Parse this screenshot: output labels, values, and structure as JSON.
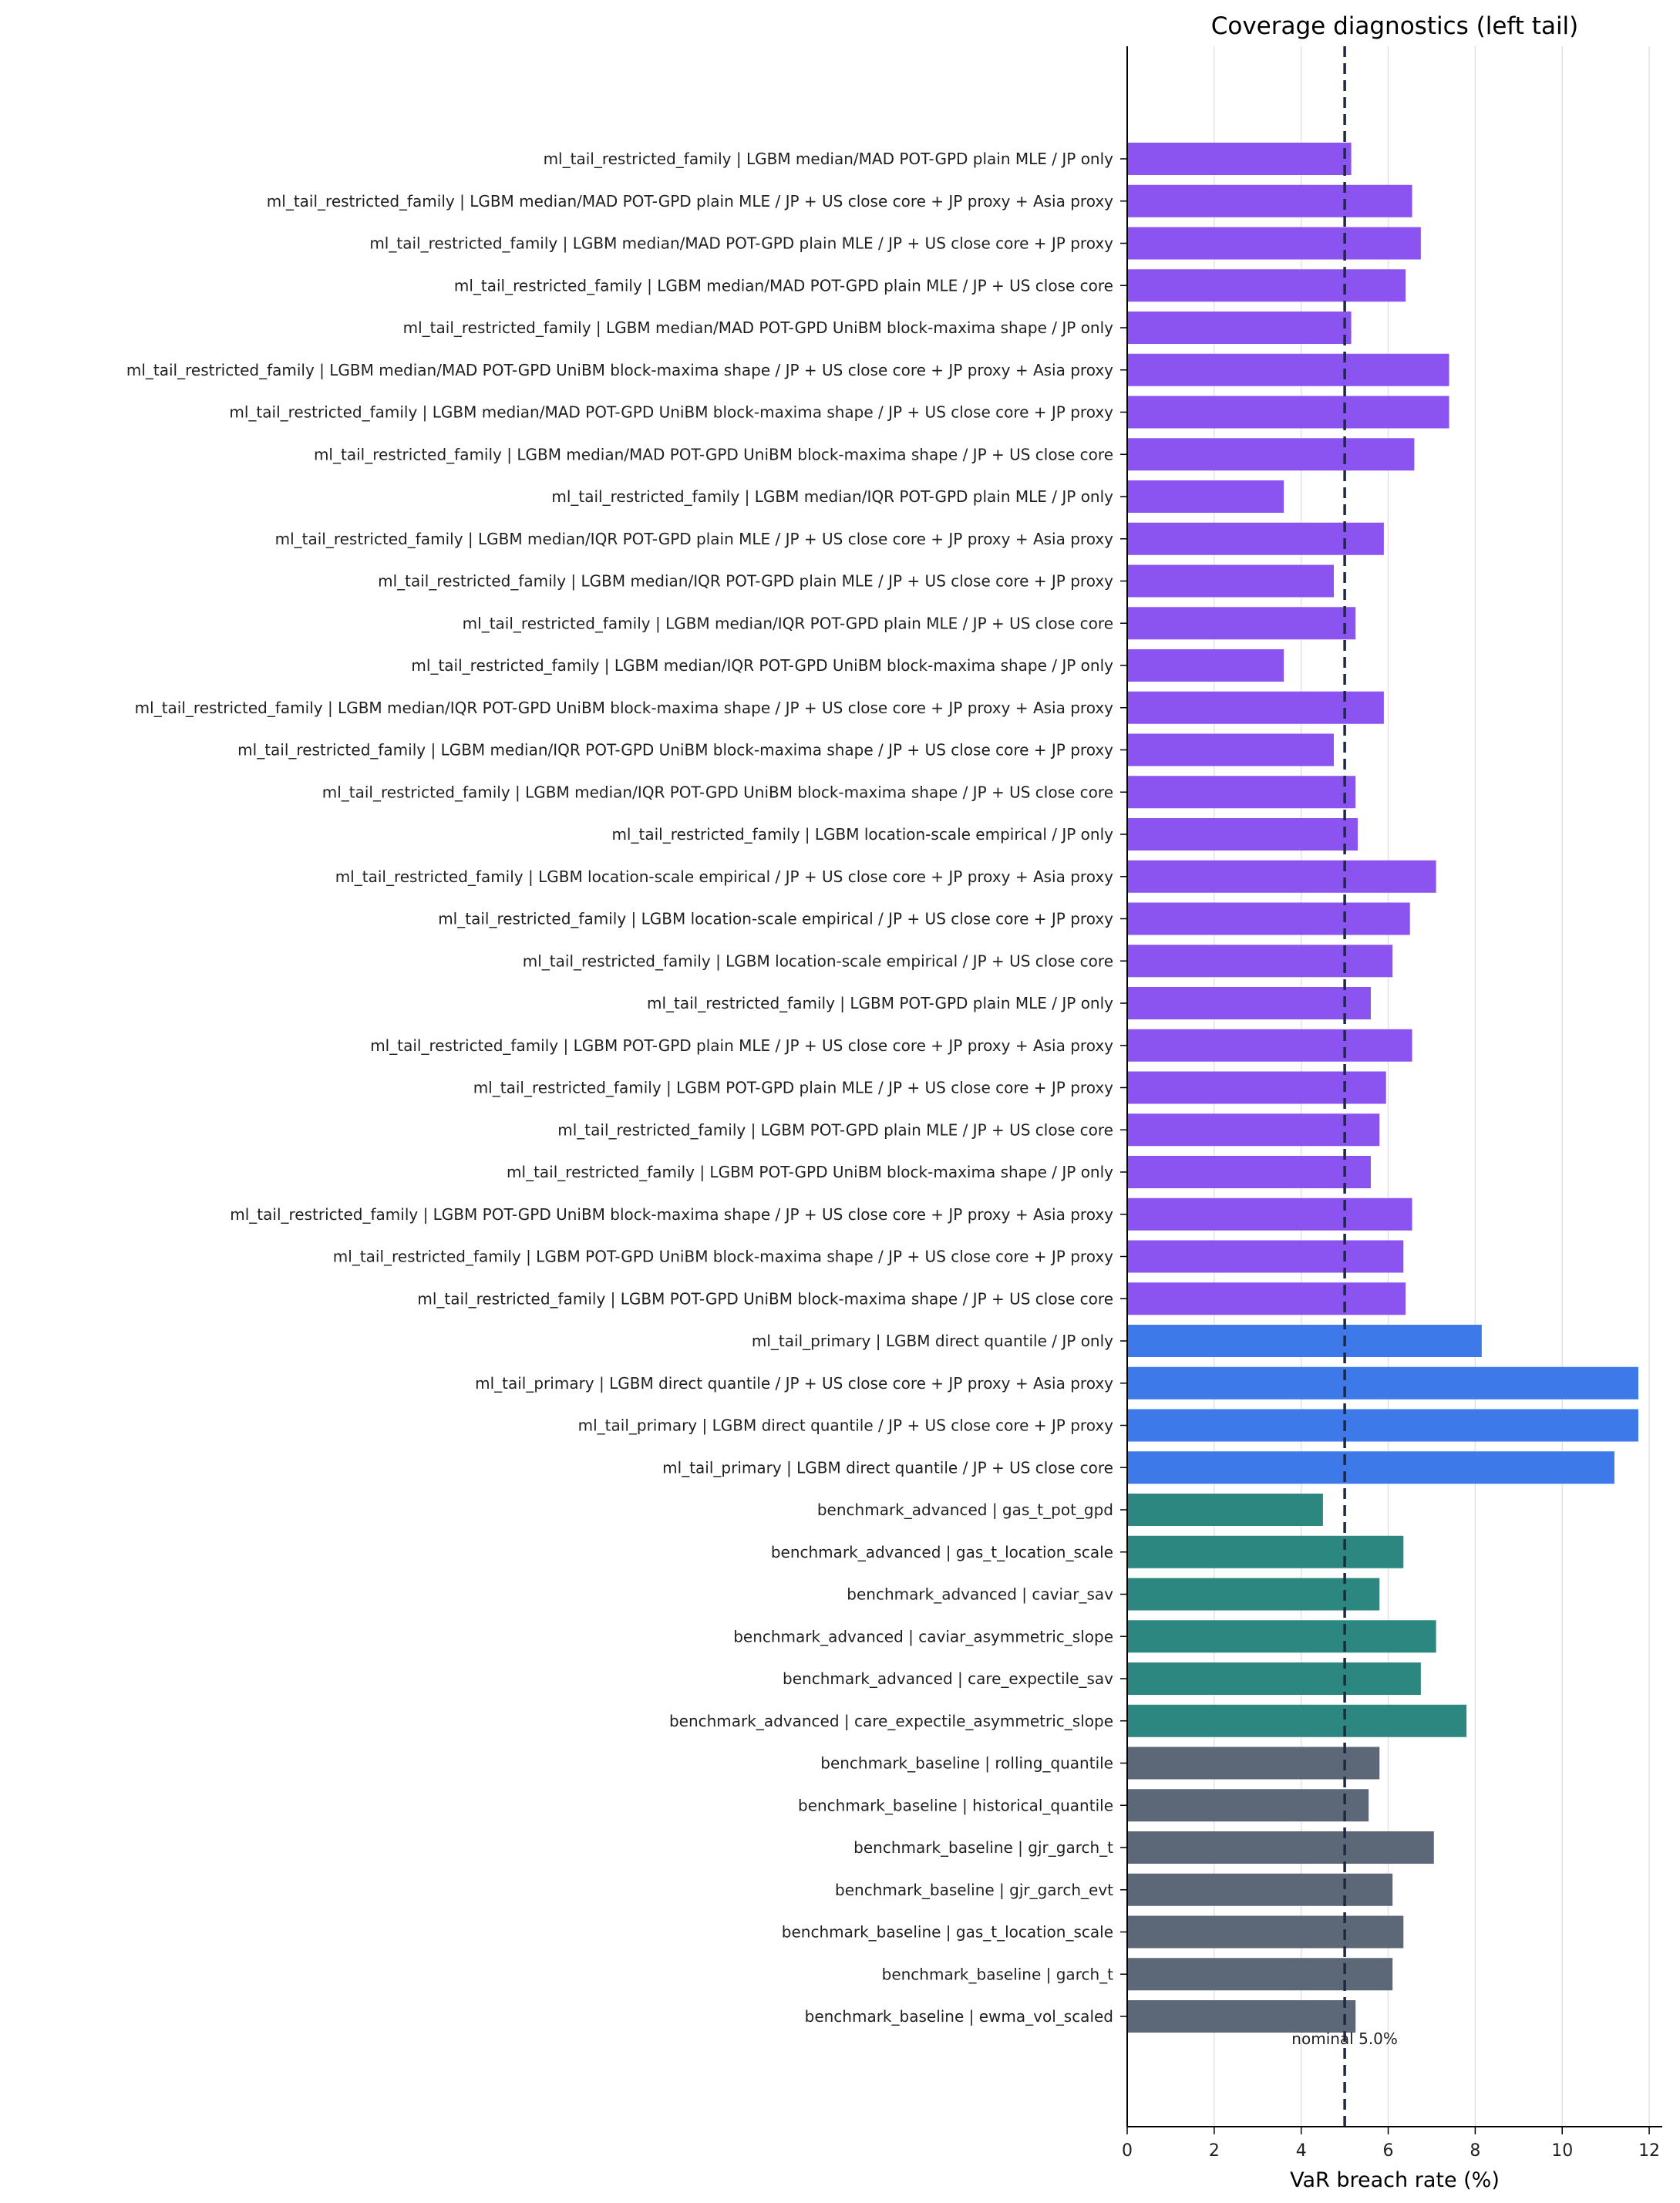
{
  "chart_data": {
    "type": "bar",
    "orientation": "horizontal",
    "title": "Coverage diagnostics (left tail)",
    "xlabel": "VaR breach rate (%)",
    "ylabel": "",
    "xlim": [
      0,
      12.3
    ],
    "xticks": [
      0,
      2,
      4,
      6,
      8,
      10,
      12
    ],
    "grid": "vertical",
    "reference_line": {
      "value": 5.0,
      "label": "nominal 5.0%",
      "style": "dashed",
      "color": "#1e2a44"
    },
    "group_colors": {
      "ml_tail_restricted_family": "#8b54f0",
      "ml_tail_primary": "#3d79e8",
      "benchmark_advanced": "#2b877f",
      "benchmark_baseline": "#5c6878"
    },
    "bars": [
      {
        "label": "ml_tail_restricted_family | LGBM median/MAD POT-GPD plain MLE / JP only",
        "group": "ml_tail_restricted_family",
        "value": 5.15
      },
      {
        "label": "ml_tail_restricted_family | LGBM median/MAD POT-GPD plain MLE / JP + US close core + JP proxy + Asia proxy",
        "group": "ml_tail_restricted_family",
        "value": 6.55
      },
      {
        "label": "ml_tail_restricted_family | LGBM median/MAD POT-GPD plain MLE / JP + US close core + JP proxy",
        "group": "ml_tail_restricted_family",
        "value": 6.75
      },
      {
        "label": "ml_tail_restricted_family | LGBM median/MAD POT-GPD plain MLE / JP + US close core",
        "group": "ml_tail_restricted_family",
        "value": 6.4
      },
      {
        "label": "ml_tail_restricted_family | LGBM median/MAD POT-GPD UniBM block-maxima shape / JP only",
        "group": "ml_tail_restricted_family",
        "value": 5.15
      },
      {
        "label": "ml_tail_restricted_family | LGBM median/MAD POT-GPD UniBM block-maxima shape / JP + US close core + JP proxy + Asia proxy",
        "group": "ml_tail_restricted_family",
        "value": 7.4
      },
      {
        "label": "ml_tail_restricted_family | LGBM median/MAD POT-GPD UniBM block-maxima shape / JP + US close core + JP proxy",
        "group": "ml_tail_restricted_family",
        "value": 7.4
      },
      {
        "label": "ml_tail_restricted_family | LGBM median/MAD POT-GPD UniBM block-maxima shape / JP + US close core",
        "group": "ml_tail_restricted_family",
        "value": 6.6
      },
      {
        "label": "ml_tail_restricted_family | LGBM median/IQR POT-GPD plain MLE / JP only",
        "group": "ml_tail_restricted_family",
        "value": 3.6
      },
      {
        "label": "ml_tail_restricted_family | LGBM median/IQR POT-GPD plain MLE / JP + US close core + JP proxy + Asia proxy",
        "group": "ml_tail_restricted_family",
        "value": 5.9
      },
      {
        "label": "ml_tail_restricted_family | LGBM median/IQR POT-GPD plain MLE / JP + US close core + JP proxy",
        "group": "ml_tail_restricted_family",
        "value": 4.75
      },
      {
        "label": "ml_tail_restricted_family | LGBM median/IQR POT-GPD plain MLE / JP + US close core",
        "group": "ml_tail_restricted_family",
        "value": 5.25
      },
      {
        "label": "ml_tail_restricted_family | LGBM median/IQR POT-GPD UniBM block-maxima shape / JP only",
        "group": "ml_tail_restricted_family",
        "value": 3.6
      },
      {
        "label": "ml_tail_restricted_family | LGBM median/IQR POT-GPD UniBM block-maxima shape / JP + US close core + JP proxy + Asia proxy",
        "group": "ml_tail_restricted_family",
        "value": 5.9
      },
      {
        "label": "ml_tail_restricted_family | LGBM median/IQR POT-GPD UniBM block-maxima shape / JP + US close core + JP proxy",
        "group": "ml_tail_restricted_family",
        "value": 4.75
      },
      {
        "label": "ml_tail_restricted_family | LGBM median/IQR POT-GPD UniBM block-maxima shape / JP + US close core",
        "group": "ml_tail_restricted_family",
        "value": 5.25
      },
      {
        "label": "ml_tail_restricted_family | LGBM location-scale empirical / JP only",
        "group": "ml_tail_restricted_family",
        "value": 5.3
      },
      {
        "label": "ml_tail_restricted_family | LGBM location-scale empirical / JP + US close core + JP proxy + Asia proxy",
        "group": "ml_tail_restricted_family",
        "value": 7.1
      },
      {
        "label": "ml_tail_restricted_family | LGBM location-scale empirical / JP + US close core + JP proxy",
        "group": "ml_tail_restricted_family",
        "value": 6.5
      },
      {
        "label": "ml_tail_restricted_family | LGBM location-scale empirical / JP + US close core",
        "group": "ml_tail_restricted_family",
        "value": 6.1
      },
      {
        "label": "ml_tail_restricted_family | LGBM POT-GPD plain MLE / JP only",
        "group": "ml_tail_restricted_family",
        "value": 5.6
      },
      {
        "label": "ml_tail_restricted_family | LGBM POT-GPD plain MLE / JP + US close core + JP proxy + Asia proxy",
        "group": "ml_tail_restricted_family",
        "value": 6.55
      },
      {
        "label": "ml_tail_restricted_family | LGBM POT-GPD plain MLE / JP + US close core + JP proxy",
        "group": "ml_tail_restricted_family",
        "value": 5.95
      },
      {
        "label": "ml_tail_restricted_family | LGBM POT-GPD plain MLE / JP + US close core",
        "group": "ml_tail_restricted_family",
        "value": 5.8
      },
      {
        "label": "ml_tail_restricted_family | LGBM POT-GPD UniBM block-maxima shape / JP only",
        "group": "ml_tail_restricted_family",
        "value": 5.6
      },
      {
        "label": "ml_tail_restricted_family | LGBM POT-GPD UniBM block-maxima shape / JP + US close core + JP proxy + Asia proxy",
        "group": "ml_tail_restricted_family",
        "value": 6.55
      },
      {
        "label": "ml_tail_restricted_family | LGBM POT-GPD UniBM block-maxima shape / JP + US close core + JP proxy",
        "group": "ml_tail_restricted_family",
        "value": 6.35
      },
      {
        "label": "ml_tail_restricted_family | LGBM POT-GPD UniBM block-maxima shape / JP + US close core",
        "group": "ml_tail_restricted_family",
        "value": 6.4
      },
      {
        "label": "ml_tail_primary | LGBM direct quantile / JP only",
        "group": "ml_tail_primary",
        "value": 8.15
      },
      {
        "label": "ml_tail_primary | LGBM direct quantile / JP + US close core + JP proxy + Asia proxy",
        "group": "ml_tail_primary",
        "value": 11.75
      },
      {
        "label": "ml_tail_primary | LGBM direct quantile / JP + US close core + JP proxy",
        "group": "ml_tail_primary",
        "value": 11.75
      },
      {
        "label": "ml_tail_primary | LGBM direct quantile / JP + US close core",
        "group": "ml_tail_primary",
        "value": 11.2
      },
      {
        "label": "benchmark_advanced | gas_t_pot_gpd",
        "group": "benchmark_advanced",
        "value": 4.5
      },
      {
        "label": "benchmark_advanced | gas_t_location_scale",
        "group": "benchmark_advanced",
        "value": 6.35
      },
      {
        "label": "benchmark_advanced | caviar_sav",
        "group": "benchmark_advanced",
        "value": 5.8
      },
      {
        "label": "benchmark_advanced | caviar_asymmetric_slope",
        "group": "benchmark_advanced",
        "value": 7.1
      },
      {
        "label": "benchmark_advanced | care_expectile_sav",
        "group": "benchmark_advanced",
        "value": 6.75
      },
      {
        "label": "benchmark_advanced | care_expectile_asymmetric_slope",
        "group": "benchmark_advanced",
        "value": 7.8
      },
      {
        "label": "benchmark_baseline | rolling_quantile",
        "group": "benchmark_baseline",
        "value": 5.8
      },
      {
        "label": "benchmark_baseline | historical_quantile",
        "group": "benchmark_baseline",
        "value": 5.55
      },
      {
        "label": "benchmark_baseline | gjr_garch_t",
        "group": "benchmark_baseline",
        "value": 7.05
      },
      {
        "label": "benchmark_baseline | gjr_garch_evt",
        "group": "benchmark_baseline",
        "value": 6.1
      },
      {
        "label": "benchmark_baseline | gas_t_location_scale",
        "group": "benchmark_baseline",
        "value": 6.35
      },
      {
        "label": "benchmark_baseline | garch_t",
        "group": "benchmark_baseline",
        "value": 6.1
      },
      {
        "label": "benchmark_baseline | ewma_vol_scaled",
        "group": "benchmark_baseline",
        "value": 5.25
      }
    ]
  }
}
